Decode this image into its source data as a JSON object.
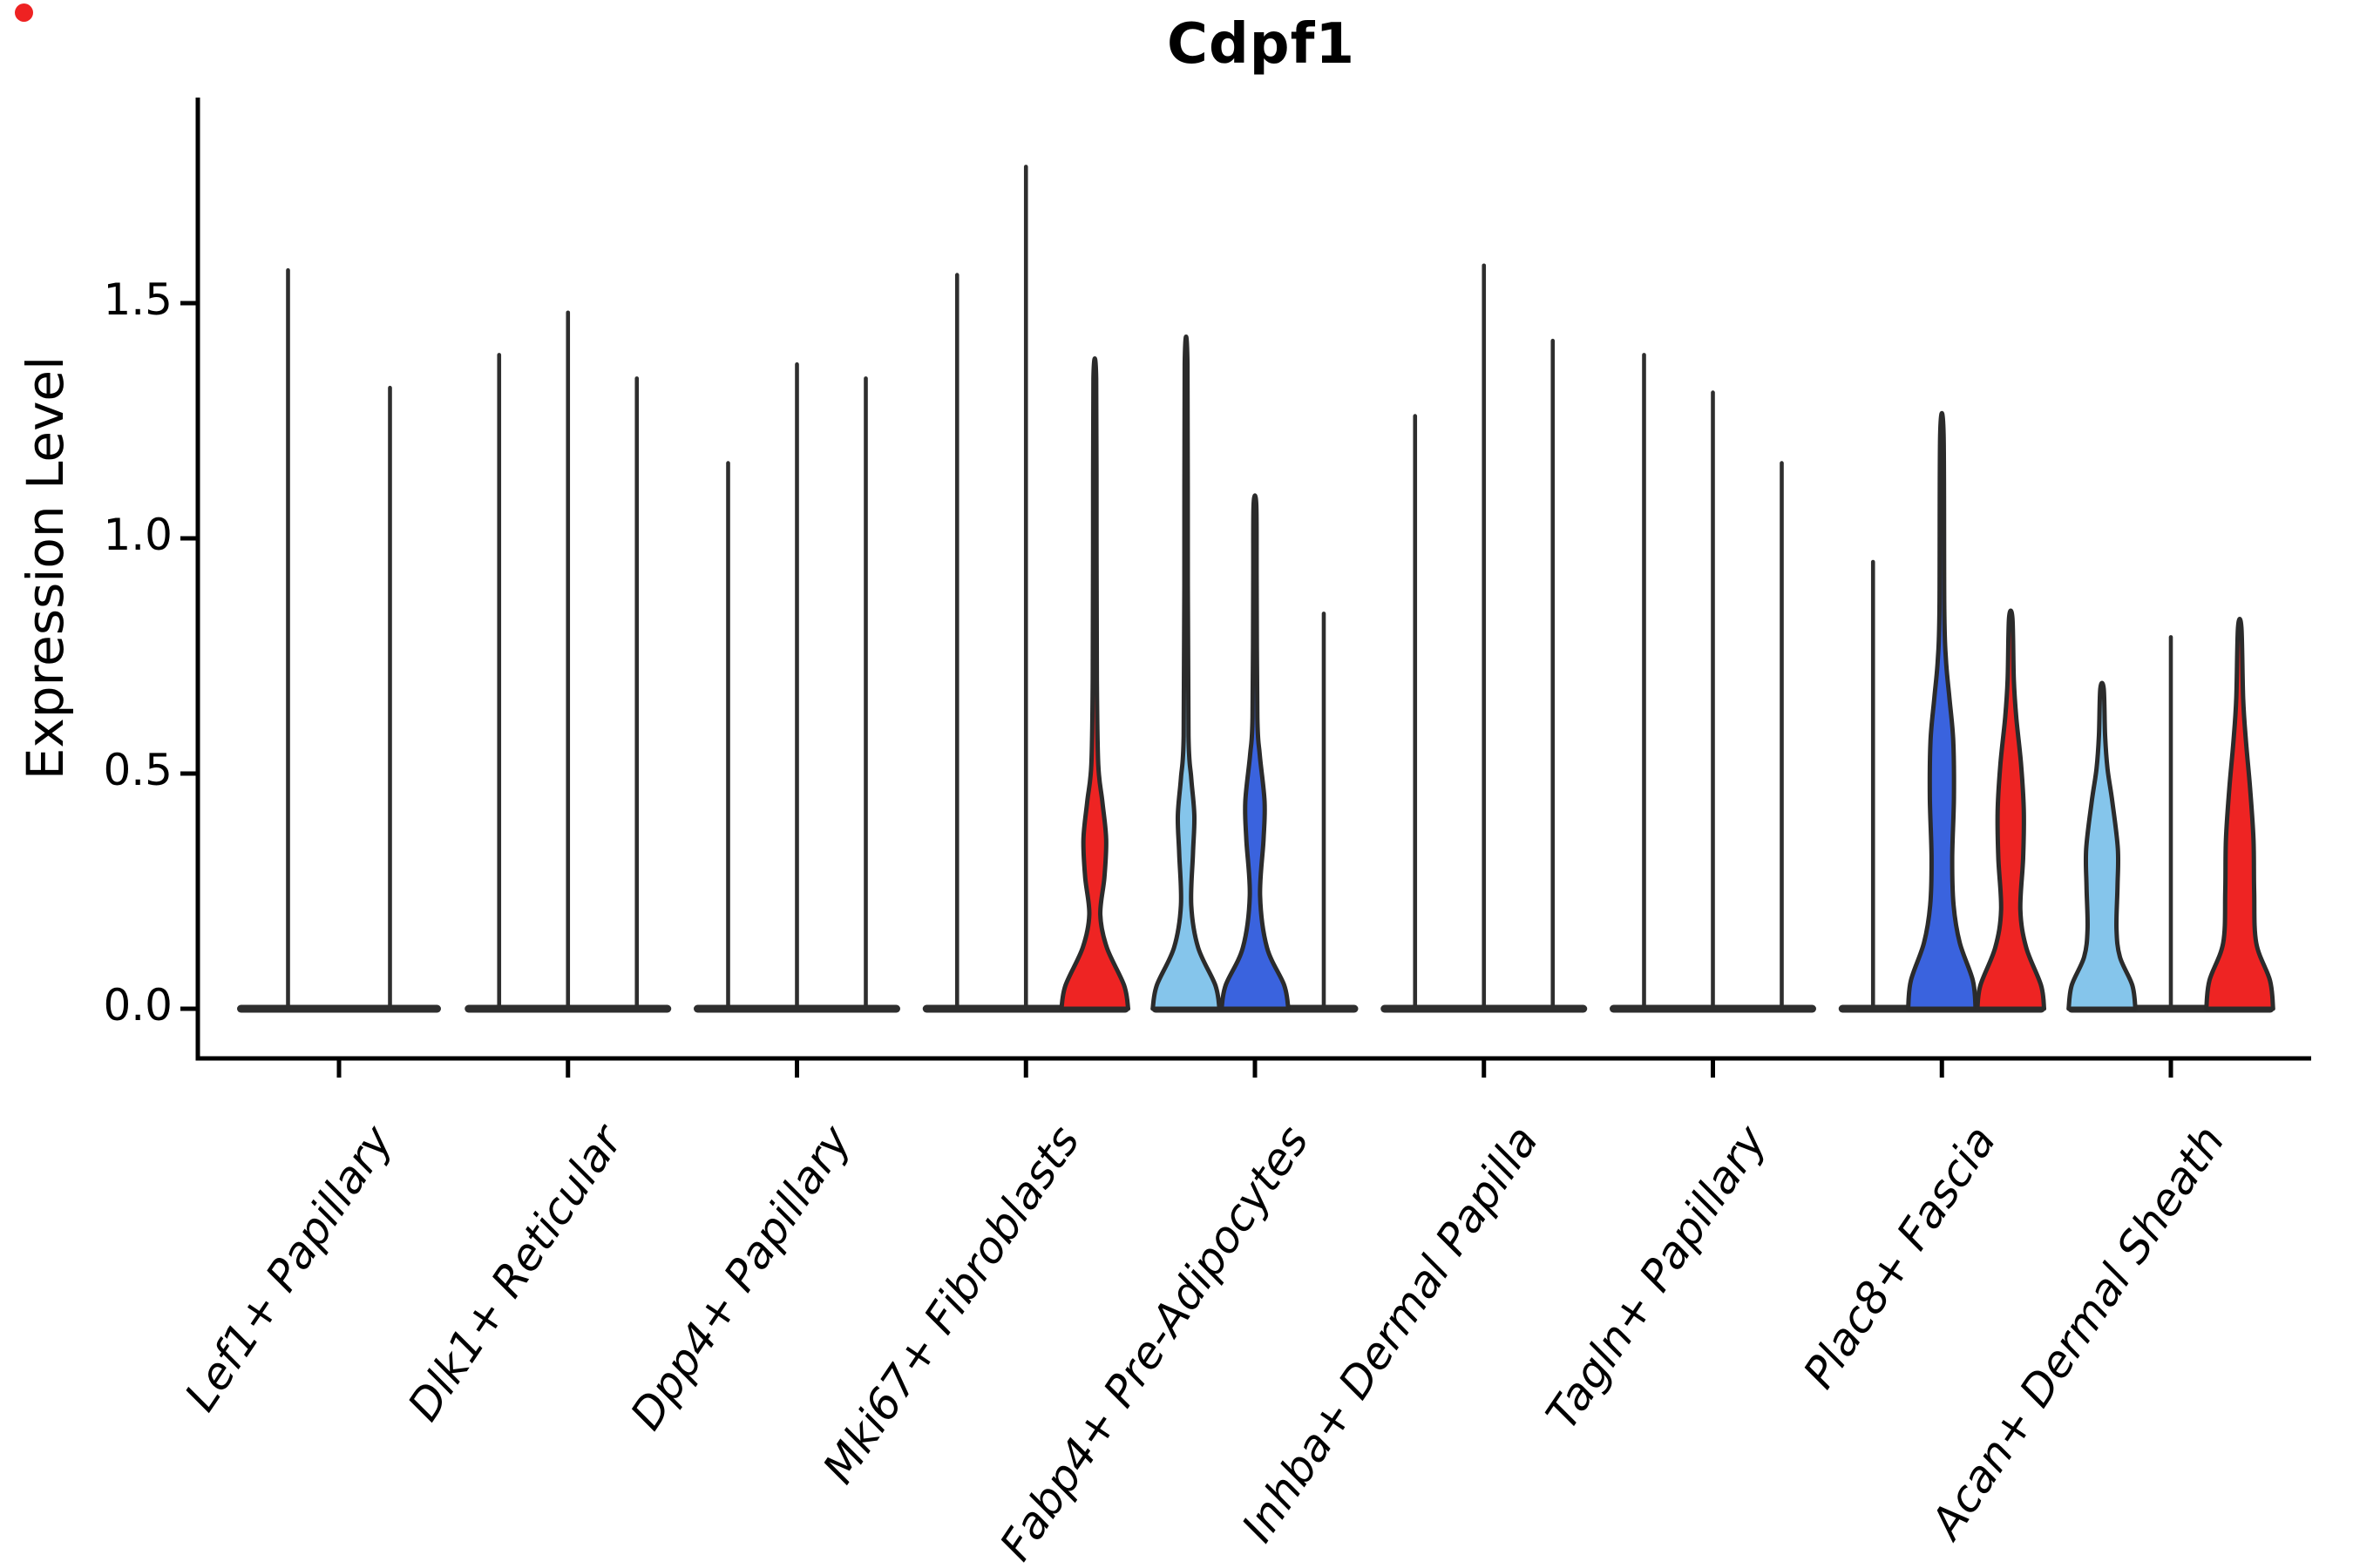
{
  "window": {
    "red_dot_color": "#ee2222"
  },
  "chart_data": {
    "type": "violin",
    "title": "Cdpf1",
    "ylabel": "Expression Level",
    "xlabel": "",
    "legend": "none",
    "grid": false,
    "ylim": [
      -0.106,
      1.94
    ],
    "yticks": [
      0.0,
      0.5,
      1.0,
      1.5
    ],
    "ytick_labels": [
      "0.0",
      "0.5",
      "1.0",
      "1.5"
    ],
    "colors": {
      "black": "#2e2e2e",
      "outline": "#2b2b2b",
      "red": "#ee2423",
      "blue": "#3a63de",
      "lightblue": "#85c5eb",
      "spine": "#000000"
    },
    "categories": [
      "Lef1+ Papillary",
      "Dlk1+ Reticular",
      "Dpp4+ Papillary",
      "Mki67+ Fibroblasts",
      "Fabp4+ Pre-Adipocytes",
      "Inhba+ Dermal Papilla",
      "Tagln+ Papillary",
      "Plac8+ Fascia",
      "Acan+ Dermal Sheath"
    ],
    "violin_series": [
      {
        "category": "Lef1+ Papillary",
        "violins": [
          {
            "color": "black",
            "max": 1.57
          },
          {
            "color": "black",
            "max": 1.32
          }
        ]
      },
      {
        "category": "Dlk1+ Reticular",
        "violins": [
          {
            "color": "black",
            "max": 1.39
          },
          {
            "color": "black",
            "max": 1.48
          },
          {
            "color": "black",
            "max": 1.34
          }
        ]
      },
      {
        "category": "Dpp4+ Papillary",
        "violins": [
          {
            "color": "black",
            "max": 1.16
          },
          {
            "color": "black",
            "max": 1.37
          },
          {
            "color": "black",
            "max": 1.34
          }
        ]
      },
      {
        "category": "Mki67+ Fibroblasts",
        "violins": [
          {
            "color": "black",
            "max": 1.56
          },
          {
            "color": "black",
            "max": 1.79
          },
          {
            "color": "red",
            "max": 1.34,
            "profile": [
              [
                0,
                0.97
              ],
              [
                0.05,
                0.85
              ],
              [
                0.13,
                0.35
              ],
              [
                0.2,
                0.16
              ],
              [
                0.28,
                0.28
              ],
              [
                0.36,
                0.33
              ],
              [
                0.44,
                0.22
              ],
              [
                0.52,
                0.1
              ],
              [
                0.7,
                0.06
              ],
              [
                1.0,
                0.05
              ],
              [
                1.34,
                0.04
              ]
            ]
          }
        ]
      },
      {
        "category": "Fabp4+ Pre-Adipocytes",
        "violins": [
          {
            "color": "lightblue",
            "max": 1.37,
            "profile": [
              [
                0,
                0.97
              ],
              [
                0.05,
                0.85
              ],
              [
                0.13,
                0.35
              ],
              [
                0.22,
                0.15
              ],
              [
                0.33,
                0.2
              ],
              [
                0.41,
                0.24
              ],
              [
                0.49,
                0.15
              ],
              [
                0.58,
                0.07
              ],
              [
                0.9,
                0.05
              ],
              [
                1.37,
                0.04
              ]
            ]
          },
          {
            "color": "blue",
            "max": 1.07,
            "profile": [
              [
                0,
                0.97
              ],
              [
                0.05,
                0.85
              ],
              [
                0.13,
                0.35
              ],
              [
                0.24,
                0.15
              ],
              [
                0.36,
                0.25
              ],
              [
                0.44,
                0.28
              ],
              [
                0.54,
                0.14
              ],
              [
                0.62,
                0.07
              ],
              [
                0.9,
                0.05
              ],
              [
                1.07,
                0.04
              ]
            ]
          },
          {
            "color": "black",
            "max": 0.84
          }
        ]
      },
      {
        "category": "Inhba+ Dermal Papilla",
        "violins": [
          {
            "color": "black",
            "max": 1.26
          },
          {
            "color": "black",
            "max": 1.58
          },
          {
            "color": "black",
            "max": 1.42
          }
        ]
      },
      {
        "category": "Tagln+ Papillary",
        "violins": [
          {
            "color": "black",
            "max": 1.39
          },
          {
            "color": "black",
            "max": 1.31
          },
          {
            "color": "black",
            "max": 1.16
          }
        ]
      },
      {
        "category": "Plac8+ Fascia",
        "violins": [
          {
            "color": "black",
            "max": 0.95
          },
          {
            "color": "blue",
            "max": 1.22,
            "profile": [
              [
                0,
                0.98
              ],
              [
                0.06,
                0.9
              ],
              [
                0.14,
                0.52
              ],
              [
                0.22,
                0.34
              ],
              [
                0.32,
                0.3
              ],
              [
                0.45,
                0.35
              ],
              [
                0.57,
                0.33
              ],
              [
                0.66,
                0.22
              ],
              [
                0.74,
                0.12
              ],
              [
                0.85,
                0.07
              ],
              [
                1.22,
                0.05
              ]
            ]
          },
          {
            "color": "red",
            "max": 0.83,
            "profile": [
              [
                0,
                0.97
              ],
              [
                0.05,
                0.88
              ],
              [
                0.13,
                0.45
              ],
              [
                0.21,
                0.28
              ],
              [
                0.32,
                0.36
              ],
              [
                0.42,
                0.38
              ],
              [
                0.52,
                0.3
              ],
              [
                0.62,
                0.16
              ],
              [
                0.7,
                0.09
              ],
              [
                0.83,
                0.05
              ]
            ]
          }
        ]
      },
      {
        "category": "Acan+ Dermal Sheath",
        "violins": [
          {
            "color": "lightblue",
            "max": 0.68,
            "profile": [
              [
                0,
                0.97
              ],
              [
                0.05,
                0.88
              ],
              [
                0.11,
                0.52
              ],
              [
                0.17,
                0.42
              ],
              [
                0.26,
                0.45
              ],
              [
                0.34,
                0.46
              ],
              [
                0.44,
                0.3
              ],
              [
                0.51,
                0.16
              ],
              [
                0.58,
                0.09
              ],
              [
                0.68,
                0.05
              ]
            ]
          },
          {
            "color": "black",
            "max": 0.79
          },
          {
            "color": "red",
            "max": 0.81,
            "profile": [
              [
                0,
                0.97
              ],
              [
                0.06,
                0.88
              ],
              [
                0.14,
                0.48
              ],
              [
                0.25,
                0.42
              ],
              [
                0.36,
                0.4
              ],
              [
                0.47,
                0.3
              ],
              [
                0.57,
                0.18
              ],
              [
                0.66,
                0.1
              ],
              [
                0.81,
                0.05
              ]
            ]
          }
        ]
      }
    ]
  }
}
